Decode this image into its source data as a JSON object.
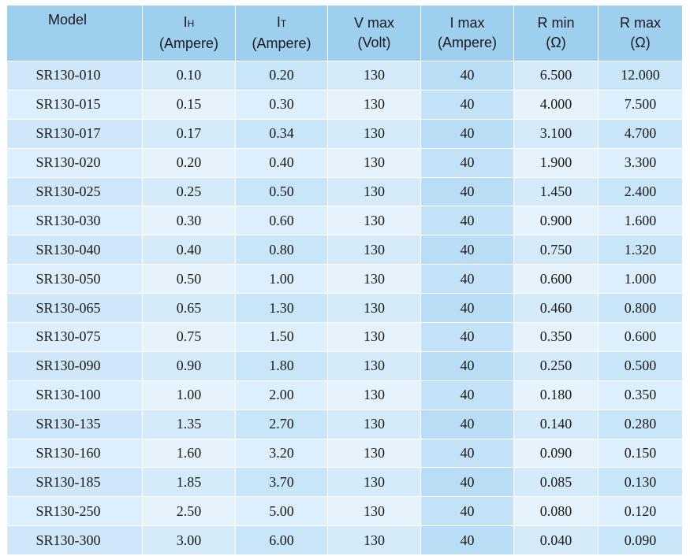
{
  "table": {
    "headers": [
      {
        "line1": "Model",
        "line2": ""
      },
      {
        "line1": "I",
        "sub": "H",
        "line2": "(Ampere)"
      },
      {
        "line1": "I",
        "sub": "T",
        "line2": "(Ampere)"
      },
      {
        "line1": "V max",
        "line2": "(Volt)"
      },
      {
        "line1": "I max",
        "line2": "(Ampere)"
      },
      {
        "line1": "R min",
        "line2": "(Ω)"
      },
      {
        "line1": "R max",
        "line2": "(Ω)"
      }
    ],
    "rows": [
      [
        "SR130-010",
        "0.10",
        "0.20",
        "130",
        "40",
        "6.500",
        "12.000"
      ],
      [
        "SR130-015",
        "0.15",
        "0.30",
        "130",
        "40",
        "4.000",
        "7.500"
      ],
      [
        "SR130-017",
        "0.17",
        "0.34",
        "130",
        "40",
        "3.100",
        "4.700"
      ],
      [
        "SR130-020",
        "0.20",
        "0.40",
        "130",
        "40",
        "1.900",
        "3.300"
      ],
      [
        "SR130-025",
        "0.25",
        "0.50",
        "130",
        "40",
        "1.450",
        "2.400"
      ],
      [
        "SR130-030",
        "0.30",
        "0.60",
        "130",
        "40",
        "0.900",
        "1.600"
      ],
      [
        "SR130-040",
        "0.40",
        "0.80",
        "130",
        "40",
        "0.750",
        "1.320"
      ],
      [
        "SR130-050",
        "0.50",
        "1.00",
        "130",
        "40",
        "0.600",
        "1.000"
      ],
      [
        "SR130-065",
        "0.65",
        "1.30",
        "130",
        "40",
        "0.460",
        "0.800"
      ],
      [
        "SR130-075",
        "0.75",
        "1.50",
        "130",
        "40",
        "0.350",
        "0.600"
      ],
      [
        "SR130-090",
        "0.90",
        "1.80",
        "130",
        "40",
        "0.250",
        "0.500"
      ],
      [
        "SR130-100",
        "1.00",
        "2.00",
        "130",
        "40",
        "0.180",
        "0.350"
      ],
      [
        "SR130-135",
        "1.35",
        "2.70",
        "130",
        "40",
        "0.140",
        "0.280"
      ],
      [
        "SR130-160",
        "1.60",
        "3.20",
        "130",
        "40",
        "0.090",
        "0.150"
      ],
      [
        "SR130-185",
        "1.85",
        "3.70",
        "130",
        "40",
        "0.085",
        "0.130"
      ],
      [
        "SR130-250",
        "2.50",
        "5.00",
        "130",
        "40",
        "0.080",
        "0.120"
      ],
      [
        "SR130-300",
        "3.00",
        "6.00",
        "130",
        "40",
        "0.040",
        "0.090"
      ]
    ]
  }
}
